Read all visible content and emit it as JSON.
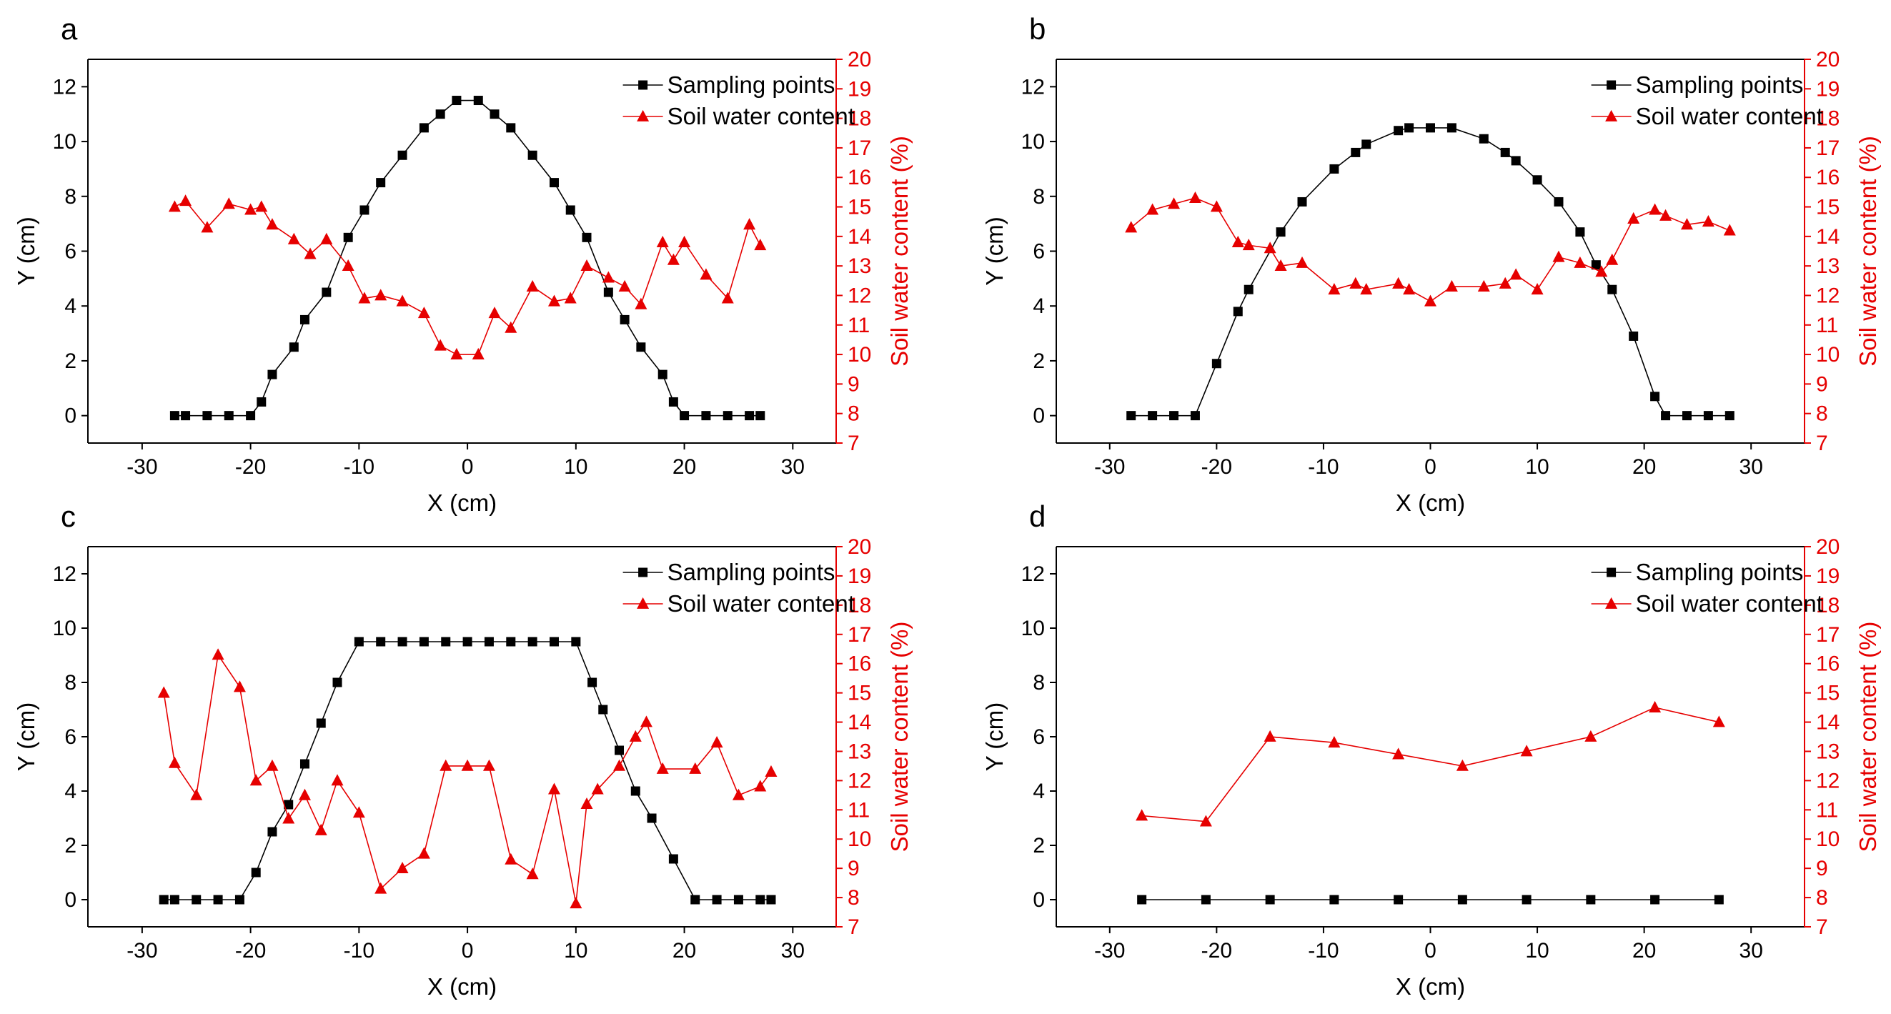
{
  "colors": {
    "series_black": "#000000",
    "series_red": "#e60000",
    "frame": "#000000"
  },
  "legend": {
    "sampling_label": "Sampling points",
    "soil_label": "Soil water content"
  },
  "chart_data": [
    {
      "label": "a",
      "type": "line",
      "xlabel": "X (cm)",
      "ylabel": "Y (cm)",
      "y2label": "Soil water content (%)",
      "xlim": [
        -35,
        34
      ],
      "ylim": [
        -1,
        13
      ],
      "y2lim": [
        7,
        20
      ],
      "xticks": [
        -30,
        -20,
        -10,
        0,
        10,
        20,
        30
      ],
      "yticks": [
        0,
        2,
        4,
        6,
        8,
        10,
        12
      ],
      "y2ticks": [
        7,
        8,
        9,
        10,
        11,
        12,
        13,
        14,
        15,
        16,
        17,
        18,
        19,
        20
      ],
      "series": [
        {
          "name": "Sampling points",
          "axis": "left",
          "color": "#000000",
          "marker": "square",
          "x": [
            -27,
            -26,
            -24,
            -22,
            -20,
            -19,
            -18,
            -16,
            -15,
            -13,
            -11,
            -9.5,
            -8,
            -6,
            -4,
            -2.5,
            -1,
            1,
            2.5,
            4,
            6,
            8,
            9.5,
            11,
            13,
            14.5,
            16,
            18,
            19,
            20,
            22,
            24,
            26,
            27
          ],
          "y": [
            0,
            0,
            0,
            0,
            0,
            0.5,
            1.5,
            2.5,
            3.5,
            4.5,
            6.5,
            7.5,
            8.5,
            9.5,
            10.5,
            11,
            11.5,
            11.5,
            11,
            10.5,
            9.5,
            8.5,
            7.5,
            6.5,
            4.5,
            3.5,
            2.5,
            1.5,
            0.5,
            0,
            0,
            0,
            0,
            0
          ]
        },
        {
          "name": "Soil water content",
          "axis": "right",
          "color": "#e60000",
          "marker": "triangle",
          "x": [
            -27,
            -26,
            -24,
            -22,
            -20,
            -19,
            -18,
            -16,
            -14.5,
            -13,
            -11,
            -9.5,
            -8,
            -6,
            -4,
            -2.5,
            -1,
            1,
            2.5,
            4,
            6,
            8,
            9.5,
            11,
            13,
            14.5,
            16,
            18,
            19,
            20,
            22,
            24,
            26,
            27
          ],
          "y": [
            15.0,
            15.2,
            14.3,
            15.1,
            14.9,
            15.0,
            14.4,
            13.9,
            13.4,
            13.9,
            13.0,
            11.9,
            12.0,
            11.8,
            11.4,
            10.3,
            10.0,
            10.0,
            11.4,
            10.9,
            12.3,
            11.8,
            11.9,
            13.0,
            12.6,
            12.3,
            11.7,
            13.8,
            13.2,
            13.8,
            12.7,
            11.9,
            14.4,
            13.7
          ]
        }
      ]
    },
    {
      "label": "b",
      "type": "line",
      "xlabel": "X (cm)",
      "ylabel": "Y (cm)",
      "y2label": "Soil water content (%)",
      "xlim": [
        -35,
        35
      ],
      "ylim": [
        -1,
        13
      ],
      "y2lim": [
        7,
        20
      ],
      "xticks": [
        -30,
        -20,
        -10,
        0,
        10,
        20,
        30
      ],
      "yticks": [
        0,
        2,
        4,
        6,
        8,
        10,
        12
      ],
      "y2ticks": [
        7,
        8,
        9,
        10,
        11,
        12,
        13,
        14,
        15,
        16,
        17,
        18,
        19,
        20
      ],
      "series": [
        {
          "name": "Sampling points",
          "axis": "left",
          "color": "#000000",
          "marker": "square",
          "x": [
            -28,
            -26,
            -24,
            -22,
            -20,
            -18,
            -17,
            -14,
            -12,
            -9,
            -7,
            -6,
            -3,
            -2,
            0,
            2,
            5,
            7,
            8,
            10,
            12,
            14,
            15.5,
            17,
            19,
            21,
            22,
            24,
            26,
            28
          ],
          "y": [
            0,
            0,
            0,
            0,
            1.9,
            3.8,
            4.6,
            6.7,
            7.8,
            9.0,
            9.6,
            9.9,
            10.4,
            10.5,
            10.5,
            10.5,
            10.1,
            9.6,
            9.3,
            8.6,
            7.8,
            6.7,
            5.5,
            4.6,
            2.9,
            0.7,
            0,
            0,
            0,
            0
          ]
        },
        {
          "name": "Soil water content",
          "axis": "right",
          "color": "#e60000",
          "marker": "triangle",
          "x": [
            -28,
            -26,
            -24,
            -22,
            -20,
            -18,
            -17,
            -15,
            -14,
            -12,
            -9,
            -7,
            -6,
            -3,
            -2,
            0,
            2,
            5,
            7,
            8,
            10,
            12,
            14,
            16,
            17,
            19,
            21,
            22,
            24,
            26,
            28
          ],
          "y": [
            14.3,
            14.9,
            15.1,
            15.3,
            15.0,
            13.8,
            13.7,
            13.6,
            13.0,
            13.1,
            12.2,
            12.4,
            12.2,
            12.4,
            12.2,
            11.8,
            12.3,
            12.3,
            12.4,
            12.7,
            12.2,
            13.3,
            13.1,
            12.8,
            13.2,
            14.6,
            14.9,
            14.7,
            14.4,
            14.5,
            14.2
          ]
        }
      ]
    },
    {
      "label": "c",
      "type": "line",
      "xlabel": "X (cm)",
      "ylabel": "Y (cm)",
      "y2label": "Soil water content (%)",
      "xlim": [
        -35,
        34
      ],
      "ylim": [
        -1,
        13
      ],
      "y2lim": [
        7,
        20
      ],
      "xticks": [
        -30,
        -20,
        -10,
        0,
        10,
        20,
        30
      ],
      "yticks": [
        0,
        2,
        4,
        6,
        8,
        10,
        12
      ],
      "y2ticks": [
        7,
        8,
        9,
        10,
        11,
        12,
        13,
        14,
        15,
        16,
        17,
        18,
        19,
        20
      ],
      "series": [
        {
          "name": "Sampling points",
          "axis": "left",
          "color": "#000000",
          "marker": "square",
          "x": [
            -28,
            -27,
            -25,
            -23,
            -21,
            -19.5,
            -18,
            -16.5,
            -15,
            -13.5,
            -12,
            -10,
            -8,
            -6,
            -4,
            -2,
            0,
            2,
            4,
            6,
            8,
            10,
            11.5,
            12.5,
            14,
            15.5,
            17,
            19,
            21,
            23,
            25,
            27,
            28
          ],
          "y": [
            0,
            0,
            0,
            0,
            0,
            1.0,
            2.5,
            3.5,
            5.0,
            6.5,
            8.0,
            9.5,
            9.5,
            9.5,
            9.5,
            9.5,
            9.5,
            9.5,
            9.5,
            9.5,
            9.5,
            9.5,
            8.0,
            7.0,
            5.5,
            4.0,
            3.0,
            1.5,
            0,
            0,
            0,
            0,
            0
          ]
        },
        {
          "name": "Soil water content",
          "axis": "right",
          "color": "#e60000",
          "marker": "triangle",
          "x": [
            -28,
            -27,
            -25,
            -23,
            -21,
            -19.5,
            -18,
            -16.5,
            -15,
            -13.5,
            -12,
            -10,
            -8,
            -6,
            -4,
            -2,
            0,
            2,
            4,
            6,
            8,
            10,
            11,
            12,
            14,
            15.5,
            16.5,
            18,
            21,
            23,
            25,
            27,
            28
          ],
          "y": [
            15.0,
            12.6,
            11.5,
            16.3,
            15.2,
            12.0,
            12.5,
            10.7,
            11.5,
            10.3,
            12.0,
            10.9,
            8.3,
            9.0,
            9.5,
            12.5,
            12.5,
            12.5,
            9.3,
            8.8,
            11.7,
            7.8,
            11.2,
            11.7,
            12.5,
            13.5,
            14.0,
            12.4,
            12.4,
            13.3,
            11.5,
            11.8,
            12.3
          ]
        }
      ]
    },
    {
      "label": "d",
      "type": "line",
      "xlabel": "X (cm)",
      "ylabel": "Y (cm)",
      "y2label": "Soil water content (%)",
      "xlim": [
        -35,
        35
      ],
      "ylim": [
        -1,
        13
      ],
      "y2lim": [
        7,
        20
      ],
      "xticks": [
        -30,
        -20,
        -10,
        0,
        10,
        20,
        30
      ],
      "yticks": [
        0,
        2,
        4,
        6,
        8,
        10,
        12
      ],
      "y2ticks": [
        7,
        8,
        9,
        10,
        11,
        12,
        13,
        14,
        15,
        16,
        17,
        18,
        19,
        20
      ],
      "series": [
        {
          "name": "Sampling points",
          "axis": "left",
          "color": "#000000",
          "marker": "square",
          "x": [
            -27,
            -21,
            -15,
            -9,
            -3,
            3,
            9,
            15,
            21,
            27
          ],
          "y": [
            0,
            0,
            0,
            0,
            0,
            0,
            0,
            0,
            0,
            0
          ]
        },
        {
          "name": "Soil water content",
          "axis": "right",
          "color": "#e60000",
          "marker": "triangle",
          "x": [
            -27,
            -21,
            -15,
            -9,
            -3,
            3,
            9,
            15,
            21,
            27
          ],
          "y": [
            10.8,
            10.6,
            13.5,
            13.3,
            12.9,
            12.5,
            13.0,
            13.5,
            14.5,
            14.0
          ]
        }
      ]
    }
  ]
}
